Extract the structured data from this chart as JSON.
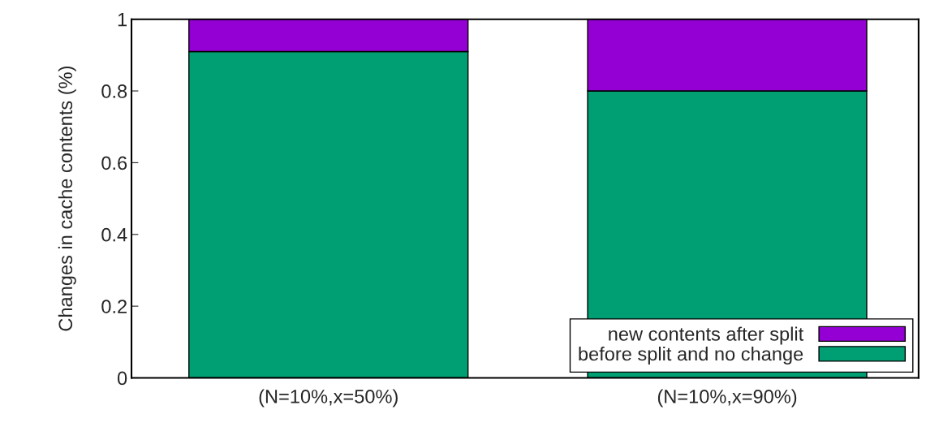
{
  "chart_data": {
    "type": "bar",
    "stacked": true,
    "ylabel": "Changes in cache contents (%)",
    "categories": [
      "(N=10%,x=50%)",
      "(N=10%,x=90%)"
    ],
    "series": [
      {
        "name": "before split and no change",
        "color": "#009e73",
        "values": [
          0.91,
          0.8
        ]
      },
      {
        "name": "new contents after split",
        "color": "#9400d3",
        "values": [
          0.09,
          0.2
        ]
      }
    ],
    "ylim": [
      0,
      1
    ],
    "yticks": [
      0,
      0.2,
      0.4,
      0.6,
      0.8,
      1
    ],
    "grid": false,
    "legend": "bottom right"
  }
}
